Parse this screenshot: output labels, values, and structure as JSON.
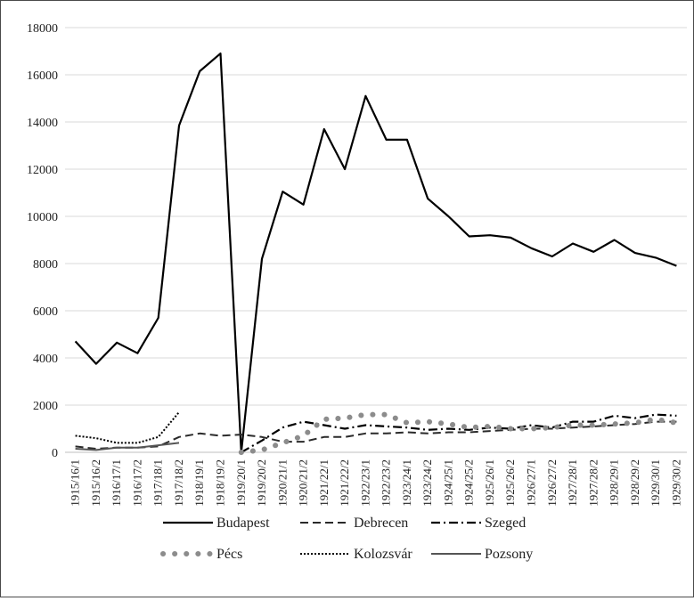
{
  "chart_data": {
    "type": "line",
    "title": "",
    "xlabel": "",
    "ylabel": "",
    "ylim": [
      0,
      18000
    ],
    "yticks": [
      0,
      2000,
      4000,
      6000,
      8000,
      10000,
      12000,
      14000,
      16000,
      18000
    ],
    "grid": true,
    "legend_position": "bottom",
    "categories": [
      "1915/16/1",
      "1915/16/2",
      "1916/17/1",
      "1916/17/2",
      "1917/18/1",
      "1917/18/2",
      "1918/19/1",
      "1918/19/2",
      "1919/20/1",
      "1919/20/2",
      "1920/21/1",
      "1920/21/2",
      "1921/22/1",
      "1921/22/2",
      "1922/23/1",
      "1922/23/2",
      "1923/24/1",
      "1923/24/2",
      "1924/25/1",
      "1924/25/2",
      "1925/26/1",
      "1925/26/2",
      "1926/27/1",
      "1926/27/2",
      "1927/28/1",
      "1927/28/2",
      "1928/29/1",
      "1928/29/2",
      "1929/30/1",
      "1929/30/2"
    ],
    "series": [
      {
        "name": "Budapest",
        "color": "#000000",
        "dash": "solid",
        "values": [
          4700,
          3750,
          4650,
          4200,
          5700,
          13850,
          16150,
          16900,
          0,
          8200,
          11050,
          10500,
          13700,
          12000,
          15100,
          13250,
          13250,
          10750,
          10000,
          9150,
          9200,
          9100,
          8650,
          8300,
          8850,
          8500,
          9000,
          8450,
          8250,
          7900
        ]
      },
      {
        "name": "Debrecen",
        "color": "#2a2a2a",
        "dash": "dashed",
        "values": [
          250,
          150,
          200,
          200,
          250,
          650,
          800,
          700,
          750,
          650,
          450,
          450,
          650,
          650,
          800,
          800,
          850,
          800,
          850,
          850,
          900,
          950,
          1000,
          1000,
          1050,
          1100,
          1150,
          1200,
          1300,
          1300
        ]
      },
      {
        "name": "Szeged",
        "color": "#000000",
        "dash": "dashdot",
        "values": [
          null,
          null,
          null,
          null,
          null,
          null,
          null,
          null,
          0,
          500,
          1050,
          1300,
          1150,
          1000,
          1150,
          1100,
          1050,
          950,
          1000,
          950,
          1050,
          1000,
          1150,
          1050,
          1300,
          1300,
          1550,
          1450,
          1600,
          1550
        ]
      },
      {
        "name": "Pécs",
        "color": "#8c8c8c",
        "dash": "dotted-circles",
        "values": [
          null,
          null,
          null,
          null,
          null,
          null,
          null,
          null,
          0,
          100,
          400,
          700,
          1400,
          1450,
          1600,
          1600,
          1250,
          1300,
          1200,
          1050,
          1100,
          1000,
          1000,
          1050,
          1150,
          1150,
          1200,
          1250,
          1400,
          1250
        ]
      },
      {
        "name": "Kolozsvár",
        "color": "#000000",
        "dash": "dotted",
        "values": [
          700,
          600,
          400,
          400,
          650,
          1700,
          null,
          null,
          null,
          null,
          null,
          null,
          null,
          null,
          null,
          null,
          null,
          null,
          null,
          null,
          null,
          null,
          null,
          null,
          null,
          null,
          null,
          null,
          null,
          null
        ]
      },
      {
        "name": "Pozsony",
        "color": "#555555",
        "dash": "solid-thin",
        "values": [
          150,
          100,
          200,
          200,
          300,
          400,
          null,
          null,
          null,
          null,
          null,
          null,
          null,
          null,
          null,
          null,
          null,
          null,
          null,
          null,
          null,
          null,
          null,
          null,
          null,
          null,
          null,
          null,
          null,
          null
        ]
      }
    ]
  }
}
